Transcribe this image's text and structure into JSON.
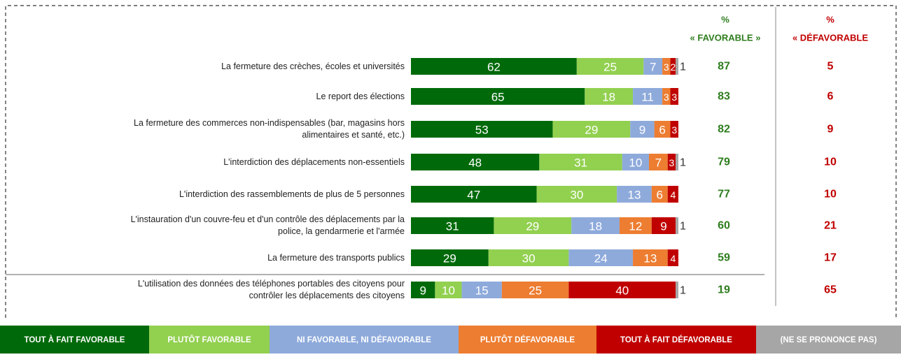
{
  "chart_data": {
    "type": "stacked-bar",
    "categories": [
      "La fermeture des crèches, écoles et universités",
      "Le report des élections",
      "La fermeture des commerces non-indispensables (bar, magasins hors\nalimentaires et santé, etc.)",
      "L'interdiction des déplacements non-essentiels",
      "L'interdiction des rassemblements de plus de 5 personnes",
      "L'instauration d'un couvre-feu et d'un contrôle des déplacements par la\npolice, la gendarmerie et l'armée",
      "La fermeture des transports publics",
      "L'utilisation des données des téléphones portables des citoyens pour\ncontrôler les déplacements des citoyens"
    ],
    "series": [
      {
        "name": "TOUT À FAIT FAVORABLE",
        "color": "#006a0a",
        "values": [
          62,
          65,
          53,
          48,
          47,
          31,
          29,
          9
        ]
      },
      {
        "name": "PLUTÔT FAVORABLE",
        "color": "#92d050",
        "values": [
          25,
          18,
          29,
          31,
          30,
          29,
          30,
          10
        ]
      },
      {
        "name": "NI FAVORABLE, NI DÉFAVORABLE",
        "color": "#8eaadb",
        "values": [
          7,
          11,
          9,
          10,
          13,
          18,
          24,
          15
        ]
      },
      {
        "name": "PLUTÔT DÉFAVORABLE",
        "color": "#ed7d31",
        "values": [
          3,
          3,
          6,
          7,
          6,
          12,
          13,
          25
        ]
      },
      {
        "name": "TOUT À FAIT DÉFAVORABLE",
        "color": "#c00000",
        "values": [
          2,
          3,
          3,
          3,
          4,
          9,
          4,
          40
        ]
      },
      {
        "name": "(NE SE PRONONCE PAS)",
        "color": "#a6a6a6",
        "values": [
          1,
          null,
          null,
          1,
          null,
          1,
          null,
          1
        ]
      }
    ],
    "xlim": [
      0,
      100
    ],
    "favorable_header": [
      "%",
      "« FAVORABLE »"
    ],
    "favorable": [
      87,
      83,
      82,
      79,
      77,
      60,
      59,
      19
    ],
    "defavorable_header": [
      "%",
      "« DÉFAVORABLE"
    ],
    "defavorable": [
      5,
      6,
      9,
      10,
      10,
      21,
      17,
      65
    ]
  }
}
